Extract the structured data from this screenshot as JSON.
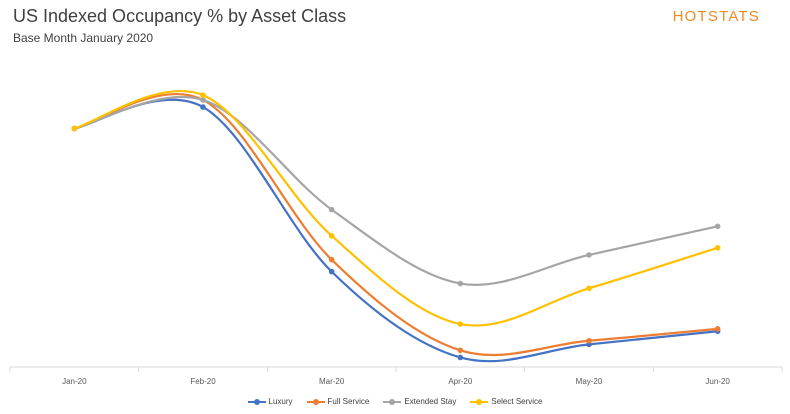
{
  "header": {
    "title": "US Indexed Occupancy % by Asset Class",
    "subtitle": "Base Month January 2020",
    "logo": "HOTSTATS"
  },
  "chart_data": {
    "type": "line",
    "title": "US Indexed Occupancy % by Asset Class",
    "subtitle": "Base Month January 2020",
    "categories": [
      "Jan-20",
      "Feb-20",
      "Mar-20",
      "Apr-20",
      "May-20",
      "Jun-20"
    ],
    "ylim": [
      0,
      130
    ],
    "y_axis_visible": false,
    "grid": false,
    "smooth": true,
    "legend_position": "bottom",
    "series": [
      {
        "name": "Luxury",
        "color": "#4472c4",
        "values": [
          100,
          109,
          40,
          4,
          9.5,
          15
        ]
      },
      {
        "name": "Full Service",
        "color": "#ed7d31",
        "values": [
          100,
          112,
          45,
          7,
          11,
          16
        ]
      },
      {
        "name": "Extended Stay",
        "color": "#a5a5a5",
        "values": [
          100,
          112,
          66,
          35,
          47,
          59
        ]
      },
      {
        "name": "Select Service",
        "color": "#ffc000",
        "values": [
          100,
          114,
          55,
          18,
          33,
          50
        ]
      }
    ]
  }
}
